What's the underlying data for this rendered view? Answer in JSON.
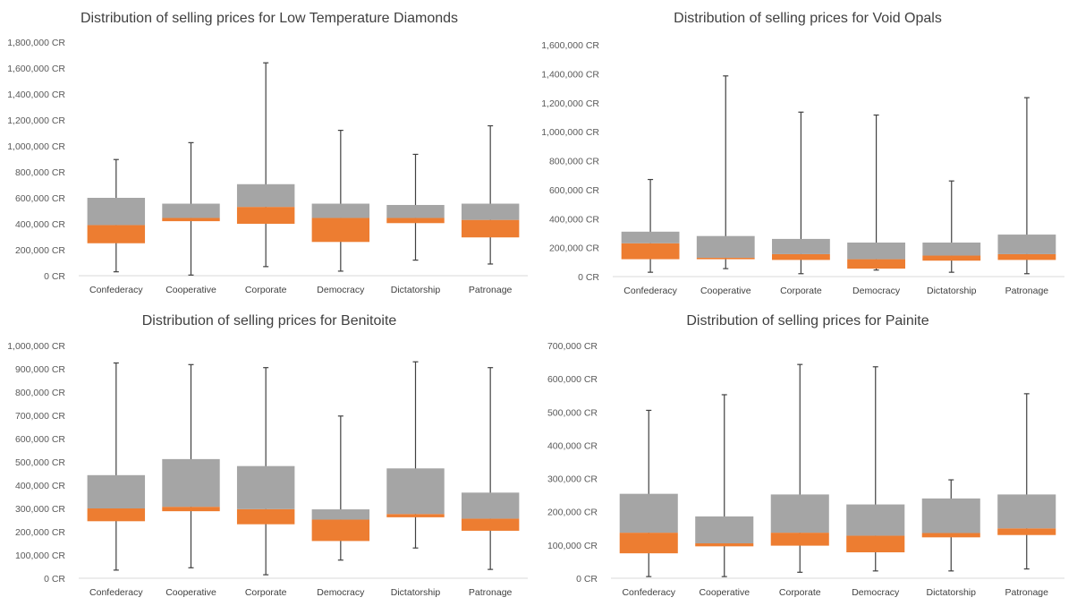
{
  "colors": {
    "upper_box": "#a5a5a5",
    "lower_box": "#ed7d31",
    "whisker": "#404040",
    "axis": "#d9d9d9",
    "text": "#595959"
  },
  "chart_data": [
    {
      "type": "box",
      "title": "Distribution of selling prices for Low Temperature Diamonds",
      "categories": [
        "Confederacy",
        "Cooperative",
        "Corporate",
        "Democracy",
        "Dictatorship",
        "Patronage"
      ],
      "y_ticks": [
        "0 CR",
        "200,000 CR",
        "400,000 CR",
        "600,000 CR",
        "800,000 CR",
        "1,000,000 CR",
        "1,200,000 CR",
        "1,400,000 CR",
        "1,600,000 CR",
        "1,800,000 CR"
      ],
      "ylim": [
        0,
        1800000
      ],
      "series": [
        {
          "name": "Confederacy",
          "min": 30000,
          "q1": 250000,
          "median": 390000,
          "q3": 600000,
          "max": 895000
        },
        {
          "name": "Cooperative",
          "min": 5000,
          "q1": 420000,
          "median": 445000,
          "q3": 555000,
          "max": 1025000
        },
        {
          "name": "Corporate",
          "min": 70000,
          "q1": 400000,
          "median": 530000,
          "q3": 705000,
          "max": 1640000
        },
        {
          "name": "Democracy",
          "min": 35000,
          "q1": 260000,
          "median": 445000,
          "q3": 555000,
          "max": 1120000
        },
        {
          "name": "Dictatorship",
          "min": 120000,
          "q1": 405000,
          "median": 445000,
          "q3": 545000,
          "max": 935000
        },
        {
          "name": "Patronage",
          "min": 90000,
          "q1": 295000,
          "median": 430000,
          "q3": 555000,
          "max": 1155000
        }
      ]
    },
    {
      "type": "box",
      "title": "Distribution of selling prices for Void Opals",
      "categories": [
        "Confederacy",
        "Cooperative",
        "Corporate",
        "Democracy",
        "Dictatorship",
        "Patronage"
      ],
      "y_ticks": [
        "0 CR",
        "200,000 CR",
        "400,000 CR",
        "600,000 CR",
        "800,000 CR",
        "1,000,000 CR",
        "1,200,000 CR",
        "1,400,000 CR",
        "1,600,000 CR"
      ],
      "ylim": [
        0,
        1600000
      ],
      "series": [
        {
          "name": "Confederacy",
          "min": 30000,
          "q1": 120000,
          "median": 230000,
          "q3": 310000,
          "max": 670000
        },
        {
          "name": "Cooperative",
          "min": 55000,
          "q1": 120000,
          "median": 130000,
          "q3": 280000,
          "max": 1385000
        },
        {
          "name": "Corporate",
          "min": 20000,
          "q1": 115000,
          "median": 155000,
          "q3": 260000,
          "max": 1135000
        },
        {
          "name": "Democracy",
          "min": 45000,
          "q1": 55000,
          "median": 120000,
          "q3": 235000,
          "max": 1115000
        },
        {
          "name": "Dictatorship",
          "min": 30000,
          "q1": 110000,
          "median": 145000,
          "q3": 235000,
          "max": 660000
        },
        {
          "name": "Patronage",
          "min": 20000,
          "q1": 115000,
          "median": 155000,
          "q3": 290000,
          "max": 1235000
        }
      ]
    },
    {
      "type": "box",
      "title": "Distribution of selling prices for Benitoite",
      "categories": [
        "Confederacy",
        "Cooperative",
        "Corporate",
        "Democracy",
        "Dictatorship",
        "Patronage"
      ],
      "y_ticks": [
        "0 CR",
        "100,000 CR",
        "200,000 CR",
        "300,000 CR",
        "400,000 CR",
        "500,000 CR",
        "600,000 CR",
        "700,000 CR",
        "800,000 CR",
        "900,000 CR",
        "1,000,000 CR"
      ],
      "ylim": [
        0,
        1000000
      ],
      "series": [
        {
          "name": "Confederacy",
          "min": 35000,
          "q1": 245000,
          "median": 300000,
          "q3": 443000,
          "max": 925000
        },
        {
          "name": "Cooperative",
          "min": 45000,
          "q1": 288000,
          "median": 307000,
          "q3": 512000,
          "max": 918000
        },
        {
          "name": "Corporate",
          "min": 15000,
          "q1": 232000,
          "median": 297000,
          "q3": 482000,
          "max": 905000
        },
        {
          "name": "Democracy",
          "min": 78000,
          "q1": 160000,
          "median": 252000,
          "q3": 296000,
          "max": 697000
        },
        {
          "name": "Dictatorship",
          "min": 130000,
          "q1": 262000,
          "median": 276000,
          "q3": 472000,
          "max": 930000
        },
        {
          "name": "Patronage",
          "min": 38000,
          "q1": 204000,
          "median": 256000,
          "q3": 368000,
          "max": 905000
        }
      ]
    },
    {
      "type": "box",
      "title": "Distribution of selling prices for Painite",
      "categories": [
        "Confederacy",
        "Cooperative",
        "Corporate",
        "Democracy",
        "Dictatorship",
        "Patronage"
      ],
      "y_ticks": [
        "0 CR",
        "100,000 CR",
        "200,000 CR",
        "300,000 CR",
        "400,000 CR",
        "500,000 CR",
        "600,000 CR",
        "700,000 CR"
      ],
      "ylim": [
        0,
        700000
      ],
      "series": [
        {
          "name": "Confederacy",
          "min": 5000,
          "q1": 75000,
          "median": 137000,
          "q3": 254000,
          "max": 505000
        },
        {
          "name": "Cooperative",
          "min": 5000,
          "q1": 96000,
          "median": 105000,
          "q3": 186000,
          "max": 552000
        },
        {
          "name": "Corporate",
          "min": 18000,
          "q1": 98000,
          "median": 137000,
          "q3": 252000,
          "max": 643000
        },
        {
          "name": "Democracy",
          "min": 22000,
          "q1": 78000,
          "median": 128000,
          "q3": 222000,
          "max": 636000
        },
        {
          "name": "Dictatorship",
          "min": 22000,
          "q1": 123000,
          "median": 136000,
          "q3": 240000,
          "max": 296000
        },
        {
          "name": "Patronage",
          "min": 28000,
          "q1": 130000,
          "median": 150000,
          "q3": 252000,
          "max": 555000
        }
      ]
    }
  ]
}
